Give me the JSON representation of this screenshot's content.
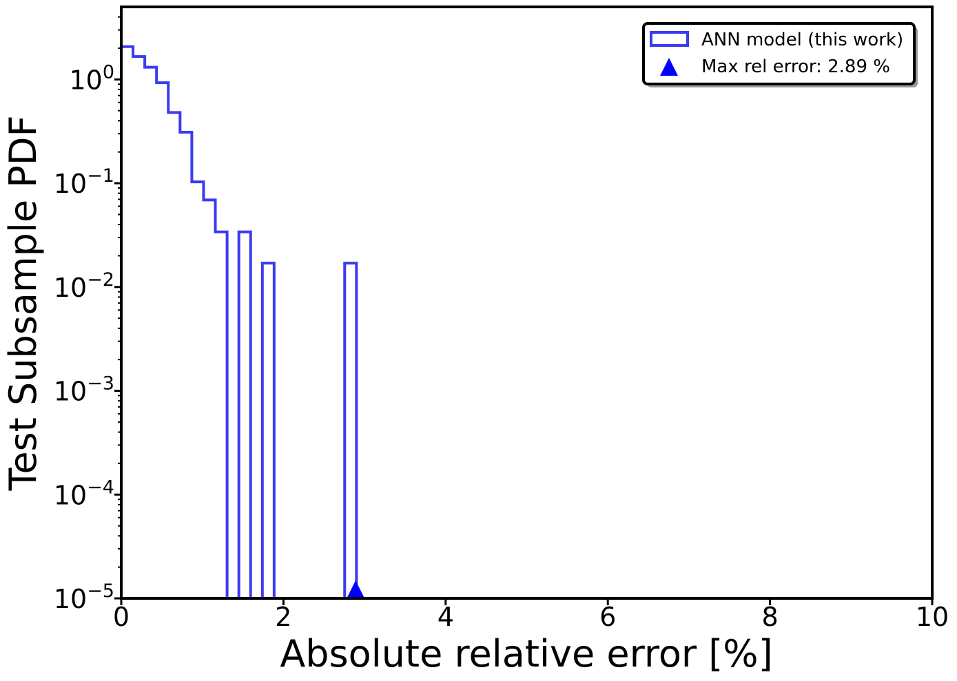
{
  "chart_data": {
    "type": "histogram",
    "title": "",
    "xlabel": "Absolute relative error [%]",
    "ylabel": "Test Subsample PDF",
    "xlim": [
      0,
      10
    ],
    "ylim": [
      1e-05,
      5
    ],
    "yscale": "log",
    "x_ticks": [
      0,
      2,
      4,
      6,
      8,
      10
    ],
    "x_tick_labels": [
      "0",
      "2",
      "4",
      "6",
      "8",
      "10"
    ],
    "y_tick_exponents": [
      0,
      -1,
      -2,
      -3,
      -4,
      -5
    ],
    "y_tick_base": "10",
    "grid": false,
    "legend_position": "upper right",
    "series": [
      {
        "name": "ANN model (this work)",
        "kind": "step-histogram",
        "color": "#3b3bf0",
        "bin_edges": [
          0.0,
          0.145,
          0.29,
          0.435,
          0.58,
          0.725,
          0.87,
          1.015,
          1.16,
          1.305,
          1.45,
          1.595,
          1.74,
          1.885,
          2.03,
          2.175,
          2.32,
          2.465,
          2.61,
          2.755,
          2.9
        ],
        "values": [
          2.07,
          1.66,
          1.31,
          0.93,
          0.48,
          0.31,
          0.103,
          0.069,
          0.034,
          0,
          0.034,
          0,
          0.017,
          0,
          0,
          0,
          0,
          0,
          0,
          0.017
        ]
      },
      {
        "name": "Max rel error: 2.89 %",
        "kind": "marker",
        "marker": "triangle-up",
        "color": "#0000ff",
        "x": 2.89,
        "y": 1e-05
      }
    ]
  }
}
